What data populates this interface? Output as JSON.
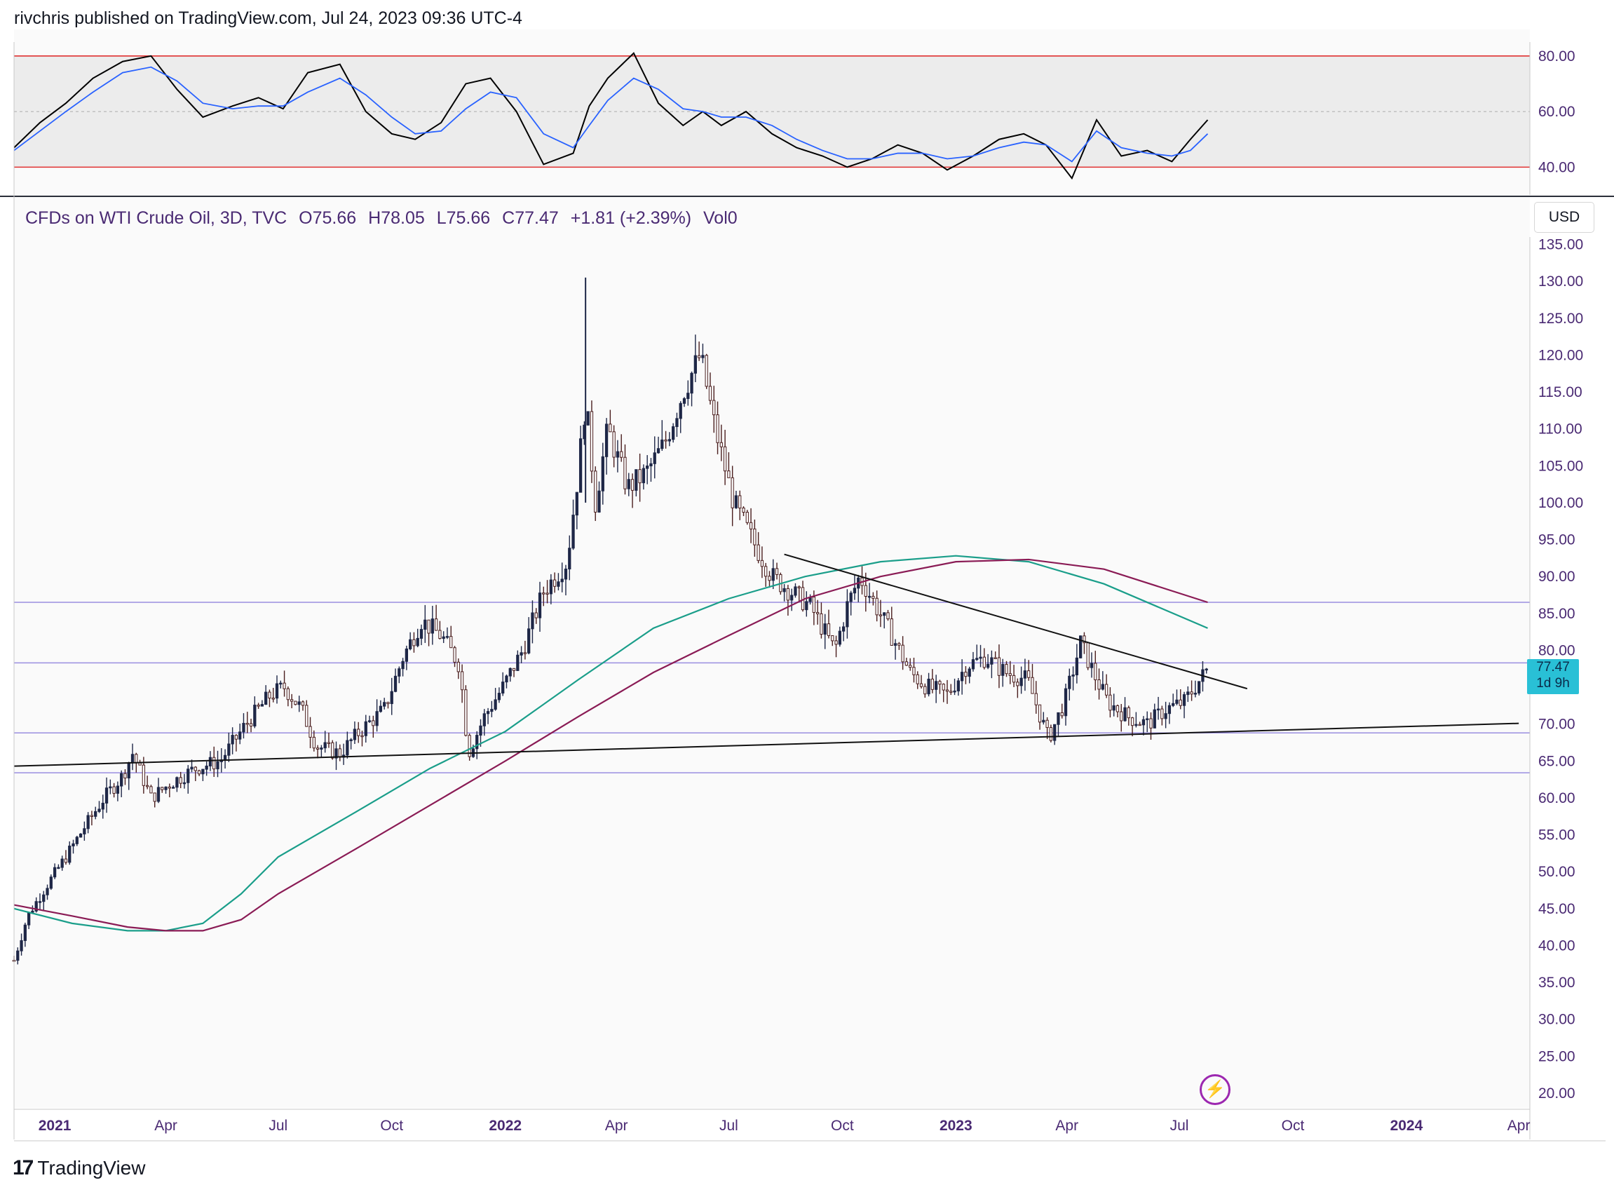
{
  "header": {
    "published": "rivchris published on TradingView.com, Jul 24, 2023 09:36 UTC-4"
  },
  "legend": {
    "symbol": "CFDs on WTI Crude Oil, 3D, TVC",
    "open": "O75.66",
    "high": "H78.05",
    "low": "L75.66",
    "close": "C77.47",
    "change": "+1.81 (+2.39%)",
    "volume": "Vol0"
  },
  "currency_button": "USD",
  "last_price": {
    "price": "77.47",
    "countdown": "1d 9h"
  },
  "footer": {
    "brand": "TradingView"
  },
  "icons": {
    "lightning": "lightning-icon",
    "logo": "tradingview-logo-icon"
  },
  "colors": {
    "up_candle": "#1e2747",
    "down_candle": "#4a1e1e",
    "ma_fast": "#1a9e8a",
    "ma_slow": "#8a1b55",
    "rsi_line": "#000000",
    "rsi_ma": "#2962ff",
    "rsi_band": "#e0e0e0",
    "rsi_limit": "#e03030",
    "hline": "#9a8ee0",
    "price_tag": "#29c0d6"
  },
  "chart_data": [
    {
      "type": "line",
      "name_hint": "RSI pane",
      "ylim": [
        30,
        85
      ],
      "yticks": [
        "80.00",
        "60.00",
        "40.00"
      ],
      "levels": [
        80,
        40
      ],
      "x": [
        "2020-11-29",
        "2020-12-20",
        "2021-01-10",
        "2021-02-01",
        "2021-02-25",
        "2021-03-20",
        "2021-04-10",
        "2021-05-01",
        "2021-05-25",
        "2021-06-15",
        "2021-07-05",
        "2021-07-25",
        "2021-08-20",
        "2021-09-10",
        "2021-10-01",
        "2021-10-20",
        "2021-11-10",
        "2021-11-30",
        "2021-12-20",
        "2022-01-10",
        "2022-02-01",
        "2022-02-25",
        "2022-03-10",
        "2022-03-25",
        "2022-04-15",
        "2022-05-05",
        "2022-05-25",
        "2022-06-10",
        "2022-06-25",
        "2022-07-15",
        "2022-08-05",
        "2022-08-25",
        "2022-09-15",
        "2022-10-05",
        "2022-10-25",
        "2022-11-15",
        "2022-12-05",
        "2022-12-25",
        "2023-01-15",
        "2023-02-05",
        "2023-02-25",
        "2023-03-15",
        "2023-04-05",
        "2023-04-25",
        "2023-05-15",
        "2023-06-05",
        "2023-06-25",
        "2023-07-10",
        "2023-07-24"
      ],
      "series": [
        {
          "values": [
            47,
            56,
            63,
            72,
            78,
            80,
            68,
            58,
            62,
            65,
            61,
            74,
            77,
            60,
            52,
            50,
            56,
            70,
            72,
            60,
            41,
            45,
            62,
            72,
            81,
            63,
            55,
            60,
            55,
            60,
            52,
            47,
            44,
            40,
            43,
            48,
            45,
            39,
            44,
            50,
            52,
            48,
            36,
            57,
            44,
            46,
            42,
            50,
            57
          ]
        },
        {
          "values": [
            46,
            53,
            60,
            67,
            74,
            76,
            71,
            63,
            61,
            62,
            62,
            67,
            72,
            66,
            58,
            52,
            53,
            61,
            67,
            65,
            52,
            47,
            55,
            64,
            72,
            68,
            61,
            60,
            58,
            58,
            55,
            50,
            46,
            43,
            43,
            45,
            45,
            43,
            44,
            47,
            49,
            48,
            42,
            53,
            47,
            45,
            44,
            46,
            52
          ]
        }
      ]
    },
    {
      "type": "candlestick",
      "ylim": [
        18,
        136
      ],
      "yticks": [
        "135.00",
        "130.00",
        "125.00",
        "120.00",
        "115.00",
        "110.00",
        "105.00",
        "100.00",
        "95.00",
        "90.00",
        "85.00",
        "80.00",
        "75.00",
        "70.00",
        "65.00",
        "60.00",
        "55.00",
        "50.00",
        "45.00",
        "40.00",
        "35.00",
        "30.00",
        "25.00",
        "20.00"
      ],
      "xticks": [
        "2021",
        "Apr",
        "Jul",
        "Oct",
        "2022",
        "Apr",
        "Jul",
        "Oct",
        "2023",
        "Apr",
        "Jul",
        "Oct",
        "2024",
        "Apr"
      ],
      "price_path": {
        "x": [
          "2020-11-29",
          "2020-12-10",
          "2020-12-25",
          "2021-01-10",
          "2021-01-25",
          "2021-02-10",
          "2021-02-25",
          "2021-03-05",
          "2021-03-20",
          "2021-04-05",
          "2021-04-25",
          "2021-05-15",
          "2021-06-05",
          "2021-06-25",
          "2021-07-06",
          "2021-07-20",
          "2021-08-01",
          "2021-08-20",
          "2021-09-05",
          "2021-09-25",
          "2021-10-10",
          "2021-10-25",
          "2021-11-10",
          "2021-11-25",
          "2021-12-02",
          "2021-12-15",
          "2021-12-30",
          "2022-01-15",
          "2022-02-01",
          "2022-02-20",
          "2022-03-01",
          "2022-03-07",
          "2022-03-15",
          "2022-03-25",
          "2022-04-10",
          "2022-04-25",
          "2022-05-10",
          "2022-05-25",
          "2022-06-08",
          "2022-06-20",
          "2022-07-05",
          "2022-07-20",
          "2022-08-05",
          "2022-08-20",
          "2022-09-05",
          "2022-09-25",
          "2022-10-05",
          "2022-10-15",
          "2022-10-25",
          "2022-11-10",
          "2022-11-25",
          "2022-12-09",
          "2022-12-25",
          "2023-01-10",
          "2023-01-25",
          "2023-02-10",
          "2023-02-28",
          "2023-03-17",
          "2023-03-30",
          "2023-04-12",
          "2023-04-25",
          "2023-05-04",
          "2023-05-20",
          "2023-06-05",
          "2023-06-20",
          "2023-07-05",
          "2023-07-24"
        ],
        "y": [
          38,
          44,
          48,
          52,
          56,
          60,
          63,
          66,
          60,
          62,
          64,
          65,
          70,
          74,
          75,
          72,
          67,
          66,
          69,
          72,
          79,
          84,
          82,
          78,
          66,
          71,
          75,
          80,
          88,
          92,
          104,
          114,
          100,
          110,
          102,
          104,
          108,
          115,
          120,
          110,
          100,
          95,
          90,
          88,
          86,
          80,
          86,
          90,
          87,
          82,
          77,
          75,
          74,
          78,
          79,
          77,
          76,
          68,
          73,
          81,
          76,
          73,
          71,
          70,
          72,
          73,
          77.47
        ]
      },
      "highs_lows": {
        "max_high": 130.5,
        "max_date": "2022-03-07",
        "min_low": 38,
        "range": "2022-06-08 high 123.7"
      },
      "ma_fast": {
        "x": [
          "2020-11-29",
          "2021-01-15",
          "2021-03-01",
          "2021-04-01",
          "2021-05-01",
          "2021-06-01",
          "2021-07-01",
          "2021-09-01",
          "2021-11-01",
          "2022-01-01",
          "2022-03-01",
          "2022-05-01",
          "2022-07-01",
          "2022-09-01",
          "2022-11-01",
          "2023-01-01",
          "2023-03-01",
          "2023-05-01",
          "2023-07-24"
        ],
        "y": [
          45,
          43,
          42,
          42,
          43,
          47,
          52,
          58,
          64,
          69,
          76,
          83,
          87,
          90,
          92,
          92.8,
          92,
          89,
          83
        ]
      },
      "ma_slow": {
        "x": [
          "2020-11-29",
          "2021-01-15",
          "2021-03-01",
          "2021-04-01",
          "2021-05-01",
          "2021-06-01",
          "2021-07-01",
          "2021-09-01",
          "2021-11-01",
          "2022-01-01",
          "2022-03-01",
          "2022-05-01",
          "2022-07-01",
          "2022-09-01",
          "2022-11-01",
          "2023-01-01",
          "2023-03-01",
          "2023-05-01",
          "2023-07-24"
        ],
        "y": [
          45.5,
          44,
          42.5,
          42,
          42,
          43.5,
          47,
          53,
          59,
          65,
          71,
          77,
          82,
          87,
          90,
          92,
          92.3,
          91,
          86.5
        ]
      },
      "horizontal_levels": [
        86.5,
        78.3,
        68.8,
        63.4
      ],
      "trendlines": [
        {
          "from": [
            "2020-11-29",
            64.3
          ],
          "to": [
            "2024-04-01",
            70.1
          ]
        },
        {
          "from": [
            "2022-08-15",
            93.0
          ],
          "to": [
            "2023-08-25",
            74.8
          ]
        }
      ]
    }
  ]
}
